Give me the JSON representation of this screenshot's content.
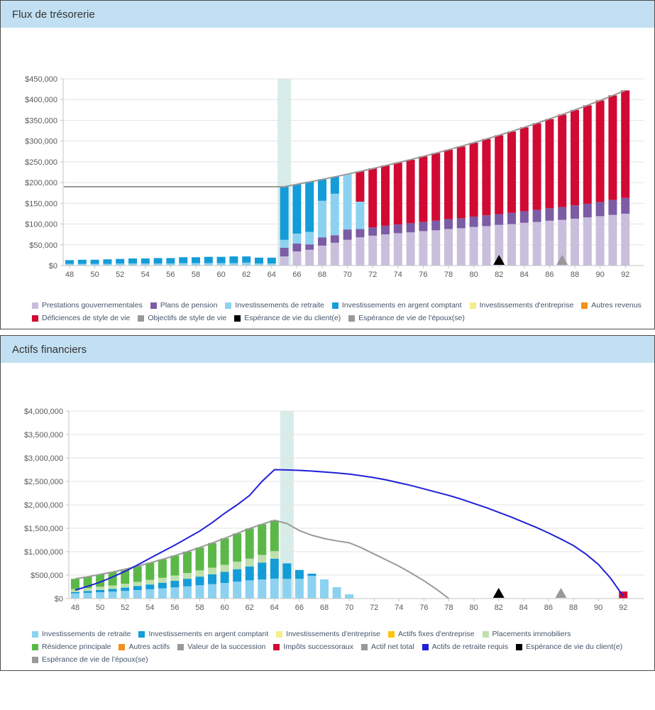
{
  "panels": [
    {
      "title": "Flux de trésorerie"
    },
    {
      "title": "Actifs financiers"
    }
  ],
  "chart_data": [
    {
      "type": "bar",
      "stacked": true,
      "title": "Flux de trésorerie",
      "ages": [
        48,
        49,
        50,
        51,
        52,
        53,
        54,
        55,
        56,
        57,
        58,
        59,
        60,
        61,
        62,
        63,
        64,
        65,
        66,
        67,
        68,
        69,
        70,
        71,
        72,
        73,
        74,
        75,
        76,
        77,
        78,
        79,
        80,
        81,
        82,
        83,
        84,
        85,
        86,
        87,
        88,
        89,
        90,
        91,
        92
      ],
      "y_axis": {
        "min": 0,
        "max": 450000,
        "step": 50000,
        "prefix": "$"
      },
      "highlight_band": {
        "age": 65,
        "color": "#d8ece9"
      },
      "series": [
        {
          "name": "Prestations gouvernementales",
          "type": "bar",
          "color": "#c9bfdc",
          "values": [
            0,
            0,
            0,
            0,
            0,
            0,
            0,
            0,
            0,
            0,
            0,
            0,
            0,
            0,
            0,
            0,
            0,
            22000,
            34000,
            38000,
            48000,
            55000,
            62000,
            68000,
            72000,
            75000,
            78000,
            80000,
            83000,
            85000,
            88000,
            90000,
            93000,
            95000,
            98000,
            100000,
            103000,
            105000,
            108000,
            110000,
            113000,
            116000,
            119000,
            122000,
            125000
          ]
        },
        {
          "name": "Plans de pension",
          "type": "bar",
          "color": "#7c5ca5",
          "values": [
            0,
            0,
            0,
            0,
            0,
            0,
            0,
            0,
            0,
            0,
            0,
            0,
            0,
            0,
            0,
            0,
            0,
            21000,
            19000,
            13000,
            20000,
            18000,
            25000,
            20000,
            20000,
            21000,
            21000,
            22000,
            22000,
            23000,
            24000,
            24000,
            25000,
            26000,
            26000,
            27000,
            28000,
            29000,
            30000,
            31000,
            32000,
            33000,
            34000,
            36000,
            38000
          ]
        },
        {
          "name": "Investissements de retraite",
          "type": "bar",
          "color": "#8cd2f0",
          "values": [
            4000,
            4000,
            4000,
            4000,
            5000,
            5000,
            5000,
            5000,
            5000,
            6000,
            6000,
            6000,
            6000,
            6000,
            7000,
            5000,
            5000,
            19000,
            24000,
            30000,
            88000,
            100000,
            133000,
            66000,
            0,
            0,
            0,
            0,
            0,
            0,
            0,
            0,
            0,
            0,
            0,
            0,
            0,
            0,
            0,
            0,
            0,
            0,
            0,
            0,
            0
          ]
        },
        {
          "name": "Investissements en argent comptant",
          "type": "bar",
          "color": "#149cd8",
          "values": [
            9000,
            10000,
            10000,
            11000,
            11000,
            12000,
            12000,
            13000,
            13000,
            14000,
            14000,
            15000,
            15000,
            16000,
            15000,
            14000,
            14000,
            128000,
            119000,
            121000,
            52000,
            41000,
            0,
            0,
            0,
            0,
            0,
            0,
            0,
            0,
            0,
            0,
            0,
            0,
            0,
            0,
            0,
            0,
            0,
            0,
            0,
            0,
            0,
            0,
            0
          ]
        },
        {
          "name": "Investissements d'entreprise",
          "type": "bar",
          "color": "#f5ee8b",
          "values": [
            0,
            0,
            0,
            0,
            0,
            0,
            0,
            0,
            0,
            0,
            0,
            0,
            0,
            0,
            0,
            0,
            0,
            0,
            0,
            0,
            0,
            0,
            0,
            0,
            0,
            0,
            0,
            0,
            0,
            0,
            0,
            0,
            0,
            0,
            0,
            0,
            0,
            0,
            0,
            0,
            0,
            0,
            0,
            0,
            0
          ]
        },
        {
          "name": "Autres revenus",
          "type": "bar",
          "color": "#f3901d",
          "values": [
            0,
            0,
            0,
            0,
            0,
            0,
            0,
            0,
            0,
            0,
            0,
            0,
            0,
            0,
            0,
            0,
            0,
            0,
            0,
            0,
            0,
            0,
            0,
            0,
            0,
            0,
            0,
            0,
            0,
            0,
            0,
            0,
            0,
            0,
            0,
            0,
            0,
            0,
            0,
            0,
            0,
            0,
            0,
            0,
            0
          ]
        },
        {
          "name": "Déficiences de style de vie",
          "type": "bar",
          "color": "#d00a33",
          "values": [
            0,
            0,
            0,
            0,
            0,
            0,
            0,
            0,
            0,
            0,
            0,
            0,
            0,
            0,
            0,
            0,
            0,
            0,
            0,
            0,
            0,
            0,
            0,
            73000,
            142000,
            145000,
            149000,
            153000,
            158000,
            163000,
            167000,
            173000,
            178000,
            184000,
            190000,
            196000,
            202000,
            209000,
            215000,
            223000,
            230000,
            237000,
            245000,
            252000,
            259000
          ]
        },
        {
          "name": "Objectifs de style de vie",
          "type": "line",
          "color": "#999999",
          "extend_left": true,
          "values": [
            190000,
            190000,
            190000,
            190000,
            190000,
            190000,
            190000,
            190000,
            190000,
            190000,
            190000,
            190000,
            190000,
            190000,
            190000,
            190000,
            190000,
            190000,
            195700,
            201600,
            207600,
            213800,
            220200,
            226800,
            233600,
            240700,
            247900,
            255300,
            263000,
            270900,
            279000,
            287400,
            296000,
            304900,
            314000,
            323400,
            333100,
            343100,
            353400,
            364000,
            375000,
            386200,
            397800,
            409700,
            422000
          ]
        }
      ],
      "markers": [
        {
          "label": "Espérance de vie du client(e)",
          "age": 82,
          "color": "#000000"
        },
        {
          "label": "Espérance de vie de l'époux(se)",
          "age": 87,
          "color": "#999999"
        }
      ]
    },
    {
      "type": "bar",
      "stacked": true,
      "title": "Actifs financiers",
      "ages": [
        48,
        49,
        50,
        51,
        52,
        53,
        54,
        55,
        56,
        57,
        58,
        59,
        60,
        61,
        62,
        63,
        64,
        65,
        66,
        67,
        68,
        69,
        70,
        71,
        72,
        73,
        74,
        75,
        76,
        77,
        78,
        79,
        80,
        81,
        82,
        83,
        84,
        85,
        86,
        87,
        88,
        89,
        90,
        91,
        92
      ],
      "y_axis": {
        "min": 0,
        "max": 4000000,
        "step": 500000,
        "prefix": "$"
      },
      "highlight_band": {
        "age": 65,
        "color": "#d8ece9"
      },
      "series": [
        {
          "name": "Investissements de retraite",
          "type": "bar",
          "color": "#8cd2f0",
          "values": [
            110000,
            122000,
            135000,
            148000,
            163000,
            180000,
            198000,
            217000,
            238000,
            260000,
            283000,
            307000,
            333000,
            360000,
            388000,
            407000,
            425000,
            420000,
            420000,
            485000,
            409000,
            242000,
            90000,
            0,
            0,
            0,
            0,
            0,
            0,
            0,
            0,
            0,
            0,
            0,
            0,
            0,
            0,
            0,
            0,
            0,
            0,
            0,
            0,
            0,
            0
          ]
        },
        {
          "name": "Investissements en argent comptant",
          "type": "bar",
          "color": "#149cd8",
          "values": [
            30000,
            38000,
            47000,
            57000,
            70000,
            85000,
            102000,
            120000,
            140000,
            162000,
            185000,
            210000,
            237000,
            266000,
            297000,
            360000,
            425000,
            330000,
            190000,
            45000,
            0,
            0,
            0,
            0,
            0,
            0,
            0,
            0,
            0,
            0,
            0,
            0,
            0,
            0,
            0,
            0,
            0,
            0,
            0,
            0,
            0,
            0,
            0,
            0,
            0
          ]
        },
        {
          "name": "Investissements d'entreprise",
          "type": "bar",
          "color": "#f5ee8b",
          "values": [
            0,
            0,
            0,
            0,
            0,
            0,
            0,
            0,
            0,
            0,
            0,
            0,
            0,
            0,
            0,
            0,
            0,
            0,
            0,
            0,
            0,
            0,
            0,
            0,
            0,
            0,
            0,
            0,
            0,
            0,
            0,
            0,
            0,
            0,
            0,
            0,
            0,
            0,
            0,
            0,
            0,
            0,
            0,
            0,
            0
          ]
        },
        {
          "name": "Actifs fixes d'entreprise",
          "type": "bar",
          "color": "#ffc20e",
          "values": [
            0,
            0,
            0,
            0,
            0,
            0,
            0,
            0,
            0,
            0,
            0,
            0,
            0,
            0,
            0,
            0,
            0,
            0,
            0,
            0,
            0,
            0,
            0,
            0,
            0,
            0,
            0,
            0,
            0,
            0,
            0,
            0,
            0,
            0,
            0,
            0,
            0,
            0,
            0,
            0,
            0,
            0,
            0,
            0,
            0
          ]
        },
        {
          "name": "Placements immobiliers",
          "type": "bar",
          "color": "#bde0ac",
          "values": [
            60000,
            65000,
            70000,
            75000,
            82000,
            90000,
            98000,
            106000,
            114000,
            123000,
            132000,
            141000,
            150000,
            160000,
            166000,
            163000,
            160000,
            0,
            0,
            0,
            0,
            0,
            0,
            0,
            0,
            0,
            0,
            0,
            0,
            0,
            0,
            0,
            0,
            0,
            0,
            0,
            0,
            0,
            0,
            0,
            0,
            0,
            0,
            0,
            0
          ]
        },
        {
          "name": "Résidence principale",
          "type": "bar",
          "color": "#5bb848",
          "values": [
            220000,
            240000,
            263000,
            285000,
            310000,
            335000,
            362000,
            392000,
            423000,
            455000,
            490000,
            527000,
            565000,
            604000,
            644000,
            655000,
            660000,
            0,
            0,
            0,
            0,
            0,
            0,
            0,
            0,
            0,
            0,
            0,
            0,
            0,
            0,
            0,
            0,
            0,
            0,
            0,
            0,
            0,
            0,
            0,
            0,
            0,
            0,
            0,
            0
          ]
        },
        {
          "name": "Autres actifs",
          "type": "bar",
          "color": "#f3901d",
          "values": [
            0,
            0,
            0,
            0,
            0,
            0,
            0,
            0,
            0,
            0,
            0,
            0,
            0,
            0,
            0,
            0,
            0,
            0,
            0,
            0,
            0,
            0,
            0,
            0,
            0,
            0,
            0,
            0,
            0,
            0,
            0,
            0,
            0,
            0,
            0,
            0,
            0,
            0,
            0,
            0,
            0,
            0,
            0,
            0,
            0
          ]
        },
        {
          "name": "Valeur de la succession",
          "type": "bar",
          "color": "#999999",
          "values": [
            0,
            0,
            0,
            0,
            0,
            0,
            0,
            0,
            0,
            0,
            0,
            0,
            0,
            0,
            0,
            0,
            0,
            0,
            0,
            0,
            0,
            0,
            0,
            0,
            0,
            0,
            0,
            0,
            0,
            0,
            0,
            0,
            0,
            0,
            0,
            0,
            0,
            0,
            0,
            0,
            0,
            0,
            0,
            0,
            0
          ]
        },
        {
          "name": "Impôts successoraux",
          "type": "bar",
          "color": "#d00a33",
          "values": [
            0,
            0,
            0,
            0,
            0,
            0,
            0,
            0,
            0,
            0,
            0,
            0,
            0,
            0,
            0,
            0,
            0,
            0,
            0,
            0,
            0,
            0,
            0,
            0,
            0,
            0,
            0,
            0,
            0,
            0,
            0,
            0,
            0,
            0,
            0,
            0,
            0,
            0,
            0,
            0,
            0,
            0,
            0,
            0,
            150000
          ]
        },
        {
          "name": "Actif net total",
          "type": "line",
          "color": "#999999",
          "values": [
            420000,
            465000,
            515000,
            565000,
            625000,
            690000,
            760000,
            835000,
            915000,
            1000000,
            1090000,
            1185000,
            1285000,
            1390000,
            1495000,
            1585000,
            1670000,
            1600000,
            1450000,
            1350000,
            1280000,
            1230000,
            1190000,
            1080000,
            950000,
            820000,
            690000,
            540000,
            380000,
            200000,
            0,
            null,
            null,
            null,
            null,
            null,
            null,
            null,
            null,
            null,
            null,
            null,
            null,
            null,
            null
          ]
        },
        {
          "name": "Actifs de retraite requis",
          "type": "line",
          "color": "#2020d8",
          "values": [
            180000,
            260000,
            350000,
            460000,
            580000,
            715000,
            860000,
            1000000,
            1140000,
            1290000,
            1440000,
            1620000,
            1820000,
            2000000,
            2200000,
            2500000,
            2750000,
            2745000,
            2735000,
            2720000,
            2700000,
            2680000,
            2655000,
            2620000,
            2580000,
            2530000,
            2470000,
            2410000,
            2340000,
            2270000,
            2200000,
            2120000,
            2030000,
            1940000,
            1840000,
            1740000,
            1630000,
            1520000,
            1400000,
            1270000,
            1130000,
            950000,
            730000,
            430000,
            50000
          ]
        }
      ],
      "markers": [
        {
          "label": "Espérance de vie du client(e)",
          "age": 82,
          "color": "#000000"
        },
        {
          "label": "Espérance de vie de l'époux(se)",
          "age": 87,
          "color": "#999999"
        }
      ]
    }
  ]
}
